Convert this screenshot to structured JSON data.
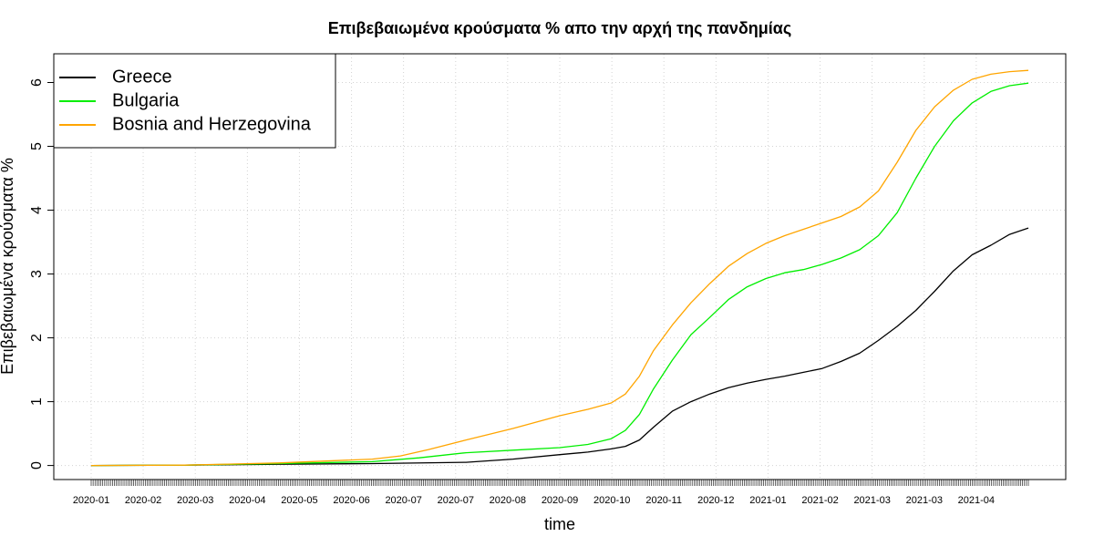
{
  "chart_data": {
    "type": "line",
    "title": "Επιβεβαιωμένα κρούσματα % απο την αρχή της πανδημίας",
    "xlabel": "time",
    "ylabel": "Επιβεβαιωμένα κρούσματα %",
    "yticks": [
      0,
      1,
      2,
      3,
      4,
      5,
      6
    ],
    "ylim": [
      -0.22,
      6.45
    ],
    "xlim": [
      0,
      1
    ],
    "grid": true,
    "legend_position": "top-left",
    "x_tick_labels": [
      {
        "label": "2020-01",
        "pos": 0.0
      },
      {
        "label": "2020-02",
        "pos": 0.0555
      },
      {
        "label": "2020-03",
        "pos": 0.1111
      },
      {
        "label": "2020-04",
        "pos": 0.1667
      },
      {
        "label": "2020-05",
        "pos": 0.2222
      },
      {
        "label": "2020-06",
        "pos": 0.2778
      },
      {
        "label": "2020-07",
        "pos": 0.3333
      },
      {
        "label": "2020-07",
        "pos": 0.3889
      },
      {
        "label": "2020-08",
        "pos": 0.4444
      },
      {
        "label": "2020-09",
        "pos": 0.5
      },
      {
        "label": "2020-10",
        "pos": 0.5556
      },
      {
        "label": "2020-11",
        "pos": 0.6111
      },
      {
        "label": "2020-12",
        "pos": 0.6667
      },
      {
        "label": "2021-01",
        "pos": 0.7222
      },
      {
        "label": "2021-02",
        "pos": 0.7778
      },
      {
        "label": "2021-03",
        "pos": 0.8333
      },
      {
        "label": "2021-03",
        "pos": 0.8889
      },
      {
        "label": "2021-04",
        "pos": 0.9444
      }
    ],
    "series": [
      {
        "name": "Greece",
        "color": "#000000",
        "points": [
          [
            0,
            0
          ],
          [
            0.1,
            0.005
          ],
          [
            0.2,
            0.02
          ],
          [
            0.3,
            0.03
          ],
          [
            0.4,
            0.05
          ],
          [
            0.45,
            0.1
          ],
          [
            0.5,
            0.17
          ],
          [
            0.53,
            0.21
          ],
          [
            0.555,
            0.26
          ],
          [
            0.57,
            0.3
          ],
          [
            0.585,
            0.4
          ],
          [
            0.6,
            0.6
          ],
          [
            0.62,
            0.85
          ],
          [
            0.64,
            1.0
          ],
          [
            0.66,
            1.12
          ],
          [
            0.68,
            1.22
          ],
          [
            0.7,
            1.29
          ],
          [
            0.72,
            1.35
          ],
          [
            0.74,
            1.4
          ],
          [
            0.76,
            1.46
          ],
          [
            0.78,
            1.52
          ],
          [
            0.8,
            1.63
          ],
          [
            0.82,
            1.76
          ],
          [
            0.84,
            1.96
          ],
          [
            0.86,
            2.18
          ],
          [
            0.88,
            2.43
          ],
          [
            0.9,
            2.73
          ],
          [
            0.92,
            3.05
          ],
          [
            0.94,
            3.3
          ],
          [
            0.96,
            3.45
          ],
          [
            0.98,
            3.62
          ],
          [
            1.0,
            3.72
          ]
        ]
      },
      {
        "name": "Bulgaria",
        "color": "#00ee00",
        "points": [
          [
            0,
            0
          ],
          [
            0.1,
            0.005
          ],
          [
            0.2,
            0.03
          ],
          [
            0.3,
            0.06
          ],
          [
            0.35,
            0.12
          ],
          [
            0.4,
            0.2
          ],
          [
            0.45,
            0.24
          ],
          [
            0.5,
            0.28
          ],
          [
            0.53,
            0.33
          ],
          [
            0.555,
            0.42
          ],
          [
            0.57,
            0.55
          ],
          [
            0.585,
            0.8
          ],
          [
            0.6,
            1.2
          ],
          [
            0.62,
            1.65
          ],
          [
            0.64,
            2.05
          ],
          [
            0.66,
            2.32
          ],
          [
            0.68,
            2.6
          ],
          [
            0.7,
            2.8
          ],
          [
            0.72,
            2.93
          ],
          [
            0.74,
            3.02
          ],
          [
            0.76,
            3.07
          ],
          [
            0.78,
            3.15
          ],
          [
            0.8,
            3.25
          ],
          [
            0.82,
            3.38
          ],
          [
            0.84,
            3.6
          ],
          [
            0.86,
            3.96
          ],
          [
            0.88,
            4.5
          ],
          [
            0.9,
            5.0
          ],
          [
            0.92,
            5.4
          ],
          [
            0.94,
            5.68
          ],
          [
            0.96,
            5.86
          ],
          [
            0.98,
            5.95
          ],
          [
            1.0,
            5.99
          ]
        ]
      },
      {
        "name": "Bosnia and Herzegovina",
        "color": "#ffa500",
        "points": [
          [
            0,
            0
          ],
          [
            0.1,
            0.005
          ],
          [
            0.2,
            0.04
          ],
          [
            0.3,
            0.1
          ],
          [
            0.33,
            0.15
          ],
          [
            0.36,
            0.25
          ],
          [
            0.4,
            0.4
          ],
          [
            0.45,
            0.58
          ],
          [
            0.5,
            0.78
          ],
          [
            0.53,
            0.88
          ],
          [
            0.555,
            0.98
          ],
          [
            0.57,
            1.12
          ],
          [
            0.585,
            1.4
          ],
          [
            0.6,
            1.8
          ],
          [
            0.62,
            2.2
          ],
          [
            0.64,
            2.55
          ],
          [
            0.66,
            2.85
          ],
          [
            0.68,
            3.12
          ],
          [
            0.7,
            3.32
          ],
          [
            0.72,
            3.48
          ],
          [
            0.74,
            3.6
          ],
          [
            0.76,
            3.7
          ],
          [
            0.78,
            3.8
          ],
          [
            0.8,
            3.9
          ],
          [
            0.82,
            4.05
          ],
          [
            0.84,
            4.3
          ],
          [
            0.86,
            4.75
          ],
          [
            0.88,
            5.25
          ],
          [
            0.9,
            5.62
          ],
          [
            0.92,
            5.88
          ],
          [
            0.94,
            6.05
          ],
          [
            0.96,
            6.13
          ],
          [
            0.98,
            6.17
          ],
          [
            1.0,
            6.19
          ]
        ]
      }
    ]
  }
}
